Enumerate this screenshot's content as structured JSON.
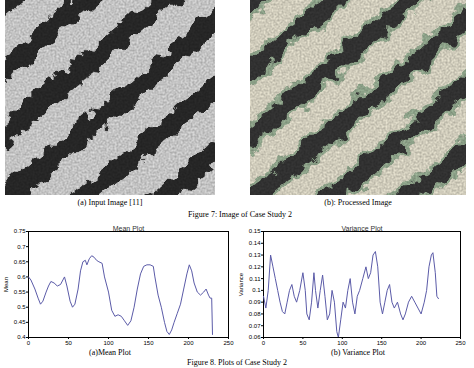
{
  "figure7": {
    "images": [
      {
        "caption": "(a) Input Image [11]"
      },
      {
        "caption": "(b): Processed Image"
      }
    ],
    "caption": "Figure 7: Image of Case Study 2"
  },
  "chart_data": [
    {
      "type": "line",
      "title": "Mean Plot",
      "ylabel": "Mean",
      "caption": "(a)Mean Plot",
      "color": "#5b5ba8",
      "grid": false,
      "x": [
        0,
        3,
        8,
        12,
        15,
        18,
        22,
        25,
        28,
        32,
        36,
        40,
        45,
        48,
        52,
        55,
        58,
        62,
        65,
        68,
        71,
        73,
        76,
        79,
        82,
        85,
        88,
        92,
        95,
        100,
        104,
        108,
        112,
        116,
        120,
        124,
        128,
        132,
        136,
        140,
        144,
        148,
        152,
        156,
        158,
        162,
        166,
        170,
        173,
        176,
        179,
        182,
        186,
        190,
        194,
        198,
        201,
        204,
        207,
        211,
        215,
        219,
        222,
        225,
        227,
        229,
        230
      ],
      "values": [
        0.6,
        0.59,
        0.56,
        0.53,
        0.51,
        0.52,
        0.55,
        0.57,
        0.585,
        0.58,
        0.57,
        0.575,
        0.6,
        0.57,
        0.52,
        0.5,
        0.51,
        0.56,
        0.62,
        0.65,
        0.655,
        0.64,
        0.66,
        0.67,
        0.665,
        0.655,
        0.65,
        0.645,
        0.6,
        0.55,
        0.49,
        0.47,
        0.475,
        0.47,
        0.455,
        0.44,
        0.455,
        0.5,
        0.56,
        0.61,
        0.635,
        0.64,
        0.64,
        0.635,
        0.6,
        0.54,
        0.5,
        0.45,
        0.42,
        0.41,
        0.425,
        0.45,
        0.48,
        0.51,
        0.56,
        0.61,
        0.64,
        0.62,
        0.58,
        0.55,
        0.54,
        0.55,
        0.56,
        0.54,
        0.53,
        0.53,
        0.41
      ],
      "xlim": [
        0,
        250
      ],
      "xticks": [
        0,
        50,
        100,
        150,
        200,
        250
      ],
      "ylim": [
        0.4,
        0.75
      ],
      "yticks": [
        0.4,
        0.45,
        0.5,
        0.55,
        0.6,
        0.65,
        0.7,
        0.75
      ]
    },
    {
      "type": "line",
      "title": "Variance Plot",
      "ylabel": "Variance",
      "caption": "(b) Variance Plot",
      "color": "#5b5ba8",
      "grid": false,
      "x": [
        0,
        3,
        6,
        9,
        12,
        15,
        18,
        21,
        24,
        27,
        30,
        33,
        36,
        39,
        42,
        46,
        50,
        53,
        55,
        58,
        61,
        64,
        66,
        69,
        72,
        75,
        78,
        81,
        84,
        87,
        90,
        93,
        95,
        98,
        101,
        104,
        107,
        110,
        113,
        116,
        119,
        122,
        126,
        130,
        133,
        136,
        139,
        142,
        145,
        148,
        151,
        154,
        157,
        160,
        163,
        166,
        170,
        174,
        177,
        180,
        184,
        188,
        192,
        196,
        200,
        204,
        207,
        210,
        213,
        215,
        218,
        220,
        222
      ],
      "values": [
        0.095,
        0.085,
        0.1,
        0.13,
        0.12,
        0.11,
        0.1,
        0.09,
        0.082,
        0.08,
        0.09,
        0.1,
        0.105,
        0.095,
        0.09,
        0.1,
        0.115,
        0.1,
        0.08,
        0.075,
        0.09,
        0.115,
        0.1,
        0.085,
        0.1,
        0.113,
        0.095,
        0.075,
        0.08,
        0.1,
        0.09,
        0.065,
        0.06,
        0.075,
        0.09,
        0.085,
        0.1,
        0.11,
        0.09,
        0.08,
        0.095,
        0.1,
        0.11,
        0.12,
        0.11,
        0.115,
        0.13,
        0.133,
        0.12,
        0.09,
        0.08,
        0.09,
        0.1,
        0.105,
        0.09,
        0.085,
        0.09,
        0.08,
        0.075,
        0.08,
        0.09,
        0.095,
        0.09,
        0.085,
        0.08,
        0.09,
        0.1,
        0.12,
        0.13,
        0.132,
        0.115,
        0.095,
        0.093
      ],
      "xlim": [
        0,
        250
      ],
      "xticks": [
        0,
        50,
        100,
        150,
        200,
        250
      ],
      "ylim": [
        0.06,
        0.15
      ],
      "yticks": [
        0.06,
        0.07,
        0.08,
        0.09,
        0.1,
        0.11,
        0.12,
        0.13,
        0.14,
        0.15
      ]
    }
  ],
  "figure8": {
    "caption": "Figure 8. Plots of Case Study 2"
  }
}
